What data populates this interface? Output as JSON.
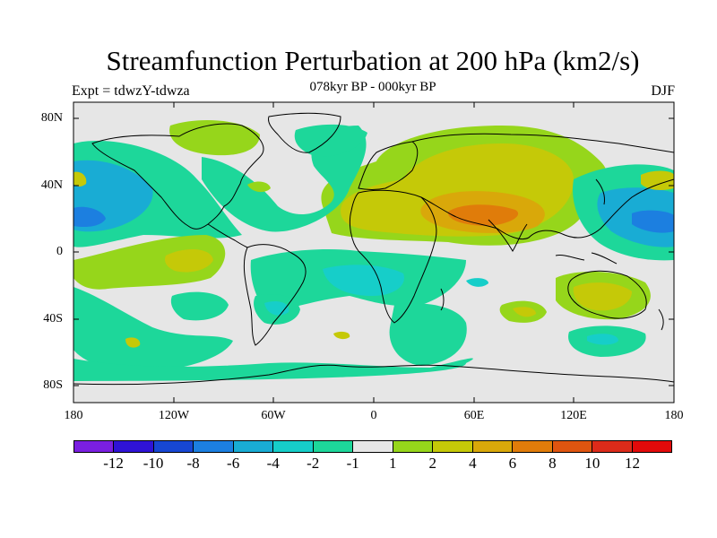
{
  "header": {
    "title": "Streamfunction Perturbation at 200 hPa (km2/s)",
    "subtitle": "078kyr BP - 000kyr BP",
    "experiment": "Expt = tdwzY-tdwza",
    "season": "DJF"
  },
  "axes": {
    "lat_labels": [
      "80N",
      "40N",
      "0",
      "40S",
      "80S"
    ],
    "lon_labels": [
      "180",
      "120W",
      "60W",
      "0",
      "60E",
      "120E",
      "180"
    ]
  },
  "colorbar": {
    "labels": [
      "-12",
      "-10",
      "-8",
      "-6",
      "-4",
      "-2",
      "-1",
      "1",
      "2",
      "4",
      "6",
      "8",
      "10",
      "12"
    ],
    "colors": [
      "#7a1fe0",
      "#2f13d6",
      "#1747d3",
      "#1c7fe0",
      "#19acd4",
      "#16cec9",
      "#1dd79a",
      "#e6e6e6",
      "#96d61b",
      "#c5c908",
      "#d9a80a",
      "#e07c0a",
      "#df5510",
      "#dc2b1a",
      "#e20a0a"
    ]
  },
  "chart_data": {
    "type": "map",
    "projection": "cylindrical-equidistant",
    "title": "Streamfunction Perturbation at 200 hPa (km2/s)",
    "subtitle": "078kyr BP - 000kyr BP",
    "season": "DJF",
    "experiment": "Expt = tdwzY-tdwza",
    "lon_range": [
      -180,
      180
    ],
    "lat_range": [
      -90,
      90
    ],
    "contour_levels": [
      -12,
      -10,
      -8,
      -6,
      -4,
      -2,
      -1,
      1,
      2,
      4,
      6,
      8,
      10,
      12
    ],
    "features": [
      {
        "region": "Eurasia / North Africa / South Asia",
        "sign": "positive",
        "max_level": "6-8"
      },
      {
        "region": "Tibetan Plateau",
        "sign": "positive",
        "max_level": "6-8"
      },
      {
        "region": "North Pacific near dateline, 10N-30N",
        "sign": "negative",
        "max_level": "-4 to -6"
      },
      {
        "region": "Northeast Pacific / North America",
        "sign": "negative",
        "max_level": "-2 to -4"
      },
      {
        "region": "Tropical Atlantic",
        "sign": "negative",
        "max_level": "-1 to -2"
      },
      {
        "region": "South Atlantic / Southern Africa",
        "sign": "negative",
        "max_level": "-1 to -4"
      },
      {
        "region": "Australia",
        "sign": "positive",
        "max_level": "2 to 4"
      },
      {
        "region": "Southern Ocean south of Australia",
        "sign": "negative",
        "max_level": "-1 to -4"
      },
      {
        "region": "Tropical eastern Pacific",
        "sign": "positive",
        "max_level": "2 to 4"
      }
    ]
  }
}
